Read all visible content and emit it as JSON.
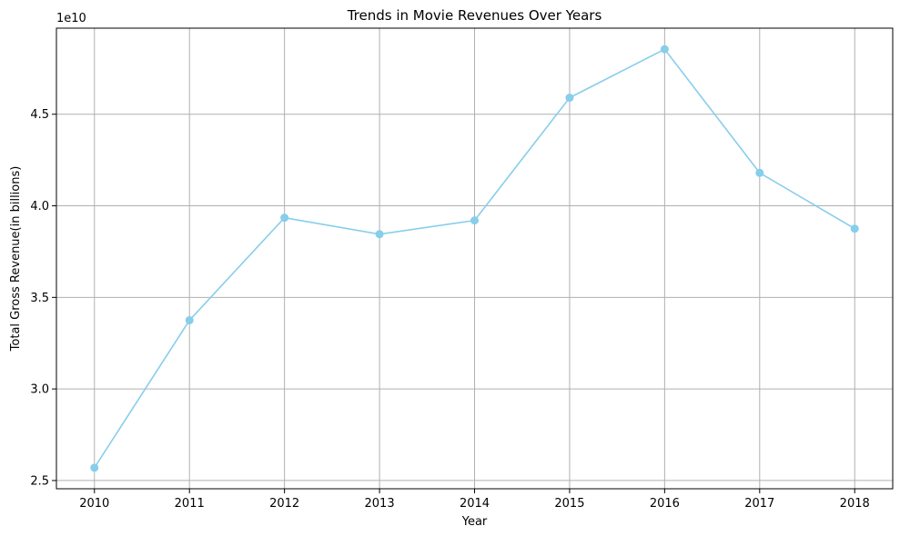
{
  "chart_data": {
    "type": "line",
    "title": "Trends in Movie Revenues Over Years",
    "xlabel": "Year",
    "ylabel": "Total Gross Revenue(in billions)",
    "y_offset_label": "1e10",
    "x": [
      2010,
      2011,
      2012,
      2013,
      2014,
      2015,
      2016,
      2017,
      2018
    ],
    "x_tick_labels": [
      "2010",
      "2011",
      "2012",
      "2013",
      "2014",
      "2015",
      "2016",
      "2017",
      "2018"
    ],
    "series": [
      {
        "values": [
          25700000000,
          33750000000,
          39350000000,
          38450000000,
          39200000000,
          45900000000,
          48550000000,
          41800000000,
          38750000000
        ],
        "color": "#87ceeb",
        "marker": "circle"
      }
    ],
    "y_ticks": [
      25000000000,
      30000000000,
      35000000000,
      40000000000,
      45000000000
    ],
    "y_tick_labels": [
      "2.5",
      "3.0",
      "3.5",
      "4.0",
      "4.5"
    ],
    "xlim": [
      2009.6,
      2018.4
    ],
    "ylim": [
      24550000000,
      49700000000
    ],
    "grid": true,
    "grid_color": "#b0b0b0",
    "axis_color": "#000000"
  }
}
